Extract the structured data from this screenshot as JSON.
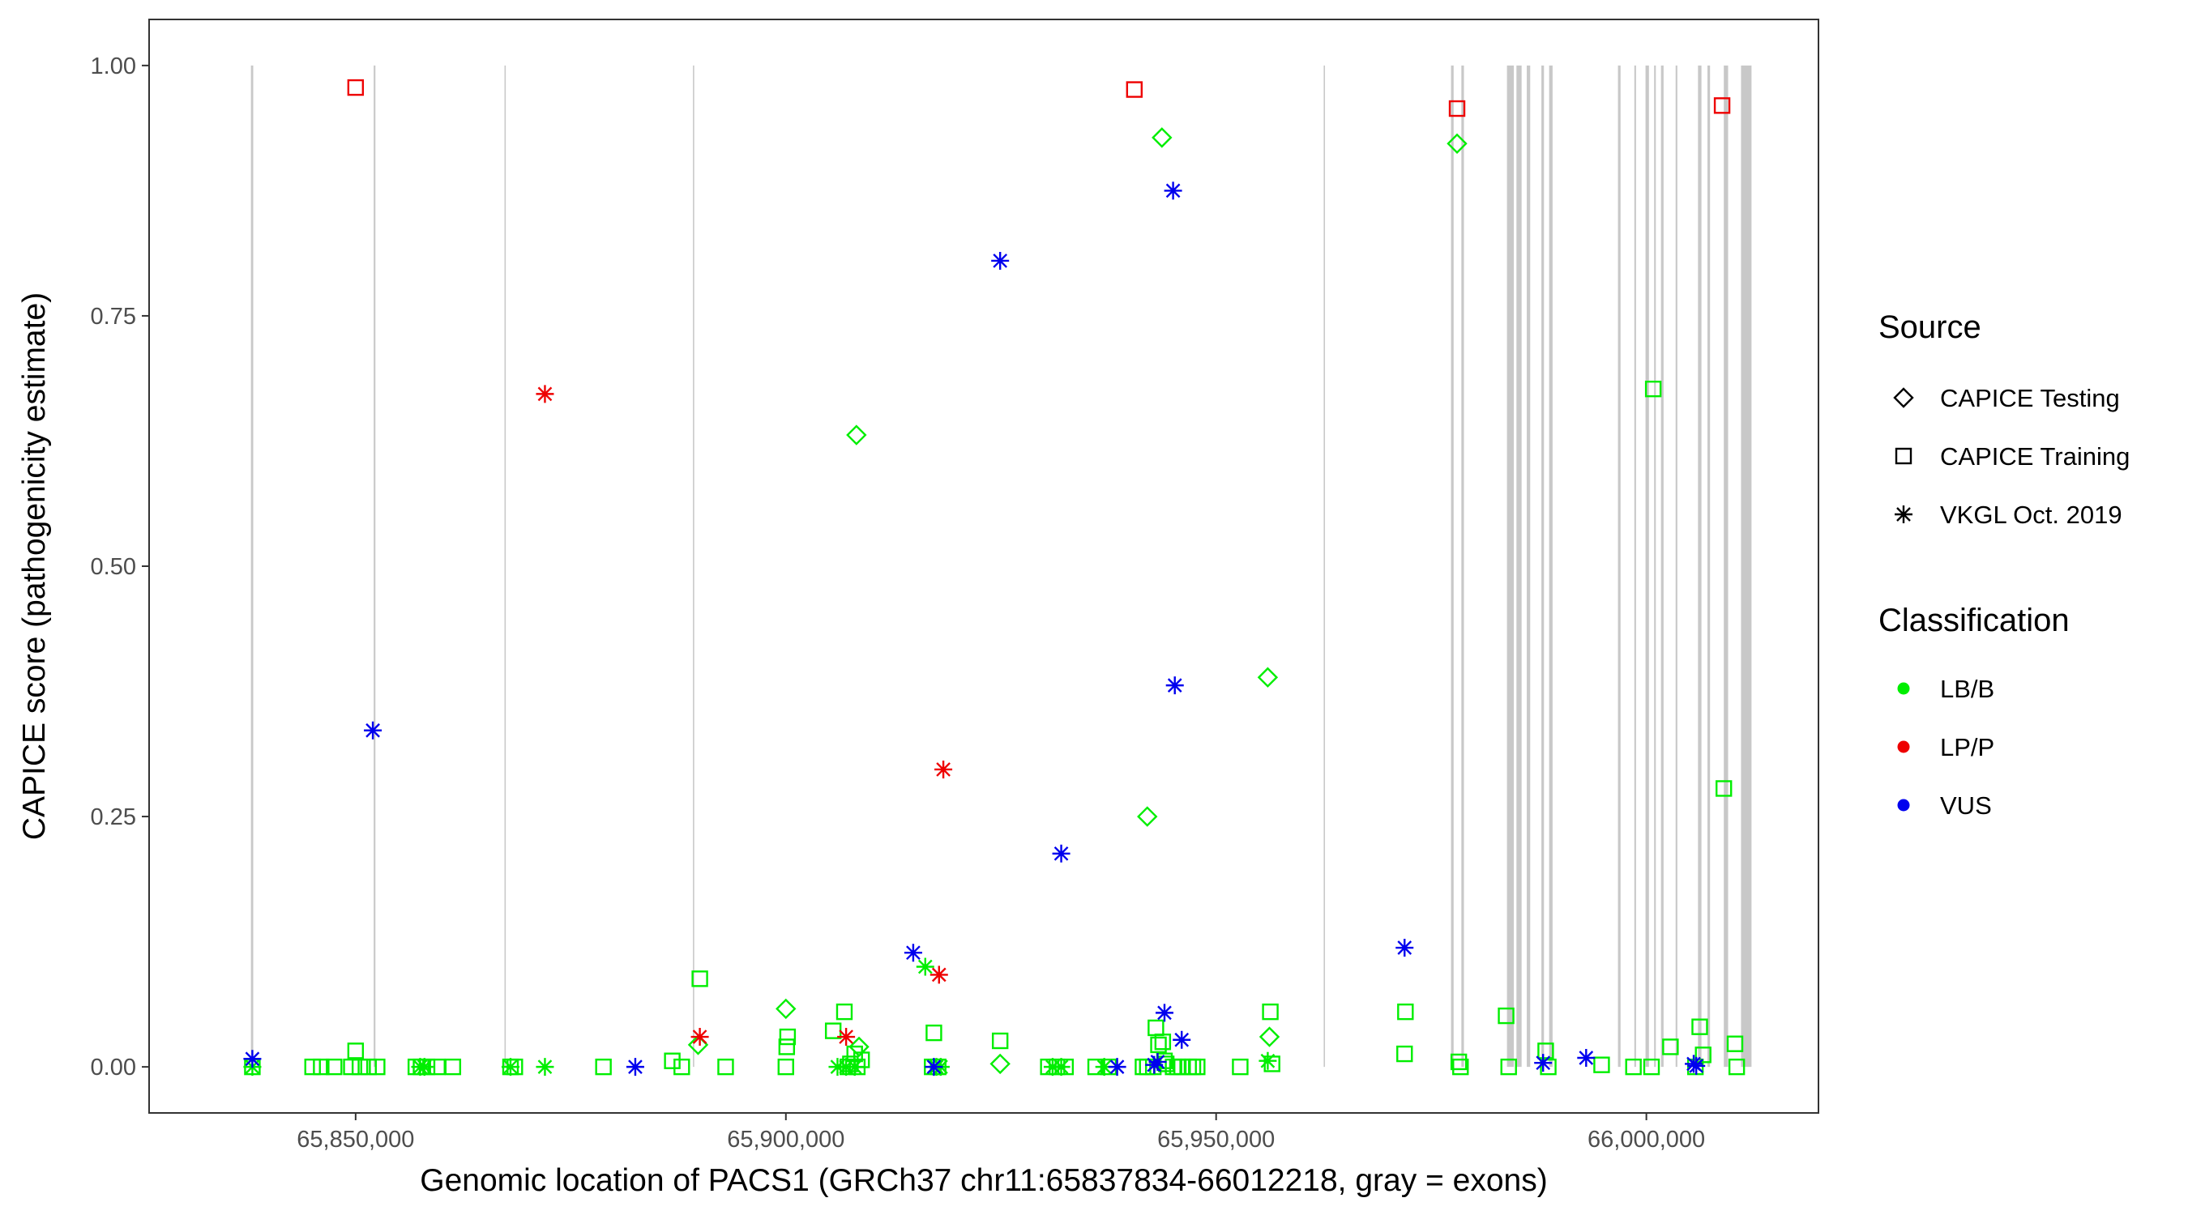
{
  "chart_data": {
    "type": "scatter",
    "title": "",
    "xlabel": "Genomic location of PACS1 (GRCh37 chr11:65837834-66012218, gray = exons)",
    "ylabel": "CAPICE score (pathogenicity estimate)",
    "xlim": [
      65826000,
      66020000
    ],
    "ylim": [
      -0.046,
      1.046
    ],
    "x_ticks": [
      65850000,
      65900000,
      65950000,
      66000000
    ],
    "x_tick_labels": [
      "65,850,000",
      "65,900,000",
      "65,950,000",
      "66,000,000"
    ],
    "y_ticks": [
      0,
      0.25,
      0.5,
      0.75,
      1.0
    ],
    "y_tick_labels": [
      "0.00",
      "0.25",
      "0.50",
      "0.75",
      "1.00"
    ],
    "grid": false,
    "exon_color": "#c8c8c8",
    "exons": [
      [
        65837834,
        65838100
      ],
      [
        65852100,
        65852300
      ],
      [
        65867300,
        65867450
      ],
      [
        65889200,
        65889350
      ],
      [
        65962500,
        65962650
      ],
      [
        65977300,
        65977600
      ],
      [
        65978500,
        65978800
      ],
      [
        65983800,
        65984600
      ],
      [
        65984900,
        65985500
      ],
      [
        65986100,
        65986500
      ],
      [
        65987800,
        65988100
      ],
      [
        65988700,
        65989100
      ],
      [
        65996700,
        65997000
      ],
      [
        65998600,
        65998800
      ],
      [
        65999900,
        66000300
      ],
      [
        66000900,
        66001100
      ],
      [
        66001700,
        66002000
      ],
      [
        66003400,
        66003600
      ],
      [
        66006000,
        66006400
      ],
      [
        66007100,
        66007400
      ],
      [
        66009000,
        66009500
      ],
      [
        66011000,
        66012218
      ]
    ],
    "legend": {
      "position": "right",
      "source_title": "Source",
      "source_items": [
        {
          "label": "CAPICE Testing",
          "shape": "diamond"
        },
        {
          "label": "CAPICE Training",
          "shape": "square"
        },
        {
          "label": "VKGL Oct. 2019",
          "shape": "asterisk"
        }
      ],
      "class_title": "Classification",
      "class_items": [
        {
          "label": "LB/B",
          "color": "#00ee00"
        },
        {
          "label": "LP/P",
          "color": "#ee0000"
        },
        {
          "label": "VUS",
          "color": "#0000ee"
        }
      ]
    },
    "series": [
      {
        "source": "CAPICE Training",
        "classification": "LB/B",
        "x": [
          65838000,
          65845000,
          65846000,
          65847500,
          65849500,
          65850000,
          65850500,
          65851500,
          65852500,
          65857000,
          65857600,
          65858300,
          65859500,
          65861300,
          65868000,
          65868500,
          65878800,
          65886800,
          65887900,
          65890000,
          65893000,
          65900000,
          65900100,
          65900200,
          65905500,
          65906800,
          65907200,
          65907500,
          65908000,
          65908300,
          65908800,
          65917000,
          65917200,
          65917700,
          65924900,
          65930500,
          65931500,
          65932500,
          65936000,
          65937500,
          65941500,
          65942000,
          65942700,
          65943000,
          65943300,
          65943800,
          65944000,
          65944200,
          65945000,
          65945500,
          65946000,
          65946800,
          65947300,
          65947800,
          65952800,
          65956300,
          65956500,
          65971900,
          65972000,
          65978200,
          65978400,
          65983700,
          65984000,
          65988300,
          65988600,
          65994800,
          65998500,
          66000600,
          66000800,
          66002800,
          66005700,
          66006200,
          66006600,
          66009000,
          66010300,
          66010500
        ],
        "y": [
          0.0,
          0.0,
          0.0,
          0.0,
          0.0,
          0.016,
          0.0,
          0.0,
          0.0,
          0.0,
          0.0,
          0.0,
          0.0,
          0.0,
          0.0,
          0.0,
          0.0,
          0.006,
          0.0,
          0.088,
          0.0,
          0.0,
          0.02,
          0.03,
          0.036,
          0.055,
          0.0,
          0.003,
          0.013,
          0.0,
          0.007,
          0.0,
          0.034,
          0.0,
          0.026,
          0.0,
          0.0,
          0.0,
          0.0,
          0.0,
          0.0,
          0.0,
          0.0,
          0.039,
          0.022,
          0.025,
          0.006,
          0.003,
          0.0,
          0.0,
          0.0,
          0.0,
          0.0,
          0.0,
          0.0,
          0.055,
          0.003,
          0.013,
          0.055,
          0.005,
          0.0,
          0.051,
          0.0,
          0.016,
          0.0,
          0.002,
          0.0,
          0.0,
          0.677,
          0.02,
          0.0,
          0.04,
          0.012,
          0.278,
          0.023,
          0.0
        ]
      },
      {
        "source": "CAPICE Training",
        "classification": "LP/P",
        "x": [
          65850000,
          65940500,
          65978000,
          66008800
        ],
        "y": [
          0.978,
          0.976,
          0.957,
          0.96
        ]
      },
      {
        "source": "CAPICE Testing",
        "classification": "LB/B",
        "x": [
          65889800,
          65900000,
          65908200,
          65908500,
          65924900,
          65942000,
          65943700,
          65956000,
          65956200,
          65978000
        ],
        "y": [
          0.022,
          0.058,
          0.631,
          0.02,
          0.003,
          0.25,
          0.928,
          0.389,
          0.03,
          0.922
        ]
      },
      {
        "source": "VKGL Oct. 2019",
        "classification": "LB/B",
        "x": [
          65838000,
          65857500,
          65858000,
          65868000,
          65872000,
          65906000,
          65907000,
          65908000,
          65916200,
          65917500,
          65918000,
          65931000,
          65932000,
          65937000,
          65956000
        ],
        "y": [
          0.0,
          0.0,
          0.0,
          0.0,
          0.0,
          0.0,
          0.0,
          0.0,
          0.1,
          0.0,
          0.0,
          0.0,
          0.0,
          0.0,
          0.006
        ]
      },
      {
        "source": "VKGL Oct. 2019",
        "classification": "LP/P",
        "x": [
          65872000,
          65890000,
          65907000,
          65917800,
          65918300
        ],
        "y": [
          0.672,
          0.03,
          0.03,
          0.092,
          0.297
        ]
      },
      {
        "source": "VKGL Oct. 2019",
        "classification": "VUS",
        "x": [
          65838000,
          65852000,
          65882500,
          65914800,
          65917200,
          65924900,
          65932000,
          65938500,
          65942800,
          65943200,
          65944000,
          65945000,
          65945200,
          65946000,
          65971900,
          65988000,
          65993000,
          66005500,
          66005800
        ],
        "y": [
          0.008,
          0.336,
          0.0,
          0.114,
          0.0,
          0.805,
          0.213,
          0.0,
          0.002,
          0.005,
          0.054,
          0.875,
          0.381,
          0.027,
          0.119,
          0.004,
          0.009,
          0.003,
          0.001
        ]
      }
    ]
  }
}
